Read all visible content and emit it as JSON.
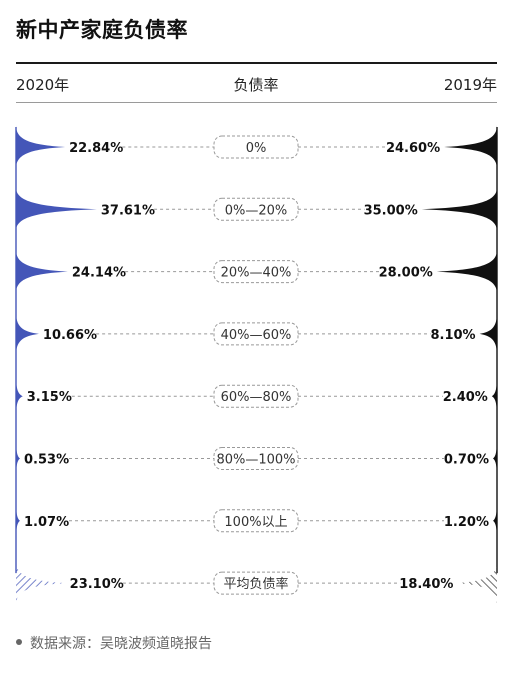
{
  "title": "新中产家庭负债率",
  "header": {
    "left": "2020年",
    "middle": "负债率",
    "right": "2019年"
  },
  "source": "数据来源：吴晓波频道晓报告",
  "colors": {
    "y2020": "#4456b8",
    "y2019": "#111111",
    "hatch2020": "#4456b8",
    "hatch2019": "#333333"
  },
  "chart_data": {
    "type": "bar",
    "categories": [
      "0%",
      "0%—20%",
      "20%—40%",
      "40%—60%",
      "60%—80%",
      "80%—100%",
      "100%以上",
      "平均负债率"
    ],
    "series": [
      {
        "name": "2020年",
        "values": [
          22.84,
          37.61,
          24.14,
          10.66,
          3.15,
          0.53,
          1.07,
          23.1
        ],
        "labels": [
          "22.84%",
          "37.61%",
          "24.14%",
          "10.66%",
          "3.15%",
          "0.53%",
          "1.07%",
          "23.10%"
        ]
      },
      {
        "name": "2019年",
        "values": [
          24.6,
          35.0,
          28.0,
          8.1,
          2.4,
          0.7,
          1.2,
          18.4
        ],
        "labels": [
          "24.60%",
          "35.00%",
          "28.00%",
          "8.10%",
          "2.40%",
          "0.70%",
          "1.20%",
          "18.40%"
        ]
      }
    ],
    "ylabel": "负债率",
    "highlight_last": "平均负债率"
  }
}
